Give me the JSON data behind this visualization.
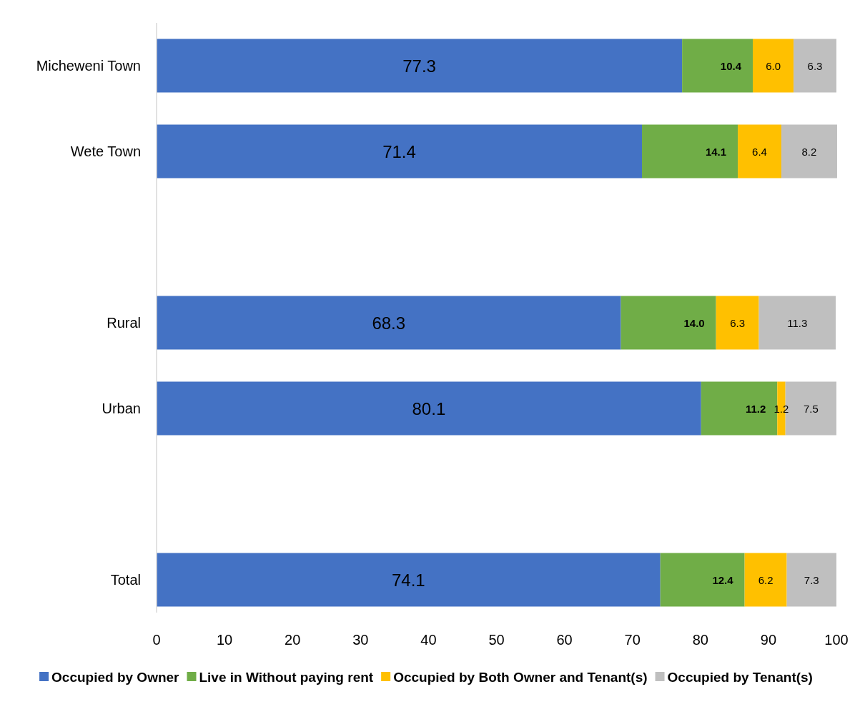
{
  "chart_data": {
    "type": "bar",
    "orientation": "horizontal",
    "stacked": true,
    "categories": [
      "Micheweni Town",
      "Wete Town",
      null,
      "Rural",
      "Urban",
      null,
      "Total"
    ],
    "series": [
      {
        "name": "Occupied by Owner",
        "color": "#4472c4",
        "values": [
          77.3,
          71.4,
          null,
          68.3,
          80.1,
          null,
          74.1
        ],
        "value_labels": [
          "77.3",
          "71.4",
          null,
          "68.3",
          "80.1",
          null,
          "74.1"
        ]
      },
      {
        "name": "Live in Without paying rent",
        "color": "#70ad47",
        "values": [
          10.4,
          14.1,
          null,
          14.0,
          11.2,
          null,
          12.4
        ],
        "value_labels": [
          "10.4",
          "14.1",
          null,
          "14.0",
          "11.2",
          null,
          "12.4"
        ]
      },
      {
        "name": "Occupied by Both Owner and Tenant(s)",
        "color": "#ffc000",
        "values": [
          6.0,
          6.4,
          null,
          6.3,
          1.2,
          null,
          6.2
        ],
        "value_labels": [
          "6.0",
          "6.4",
          null,
          "6.3",
          "1.2",
          null,
          "6.2"
        ]
      },
      {
        "name": "Occupied by Tenant(s)",
        "color": "#bfbfbf",
        "values": [
          6.3,
          8.2,
          null,
          11.3,
          7.5,
          null,
          7.3
        ],
        "value_labels": [
          "6.3",
          "8.2",
          null,
          "11.3",
          "7.5",
          null,
          "7.3"
        ]
      }
    ],
    "xlim": [
      0,
      100
    ],
    "xticks": [
      0,
      10,
      20,
      30,
      40,
      50,
      60,
      70,
      80,
      90,
      100
    ],
    "grid": false,
    "legend": "bottom"
  }
}
